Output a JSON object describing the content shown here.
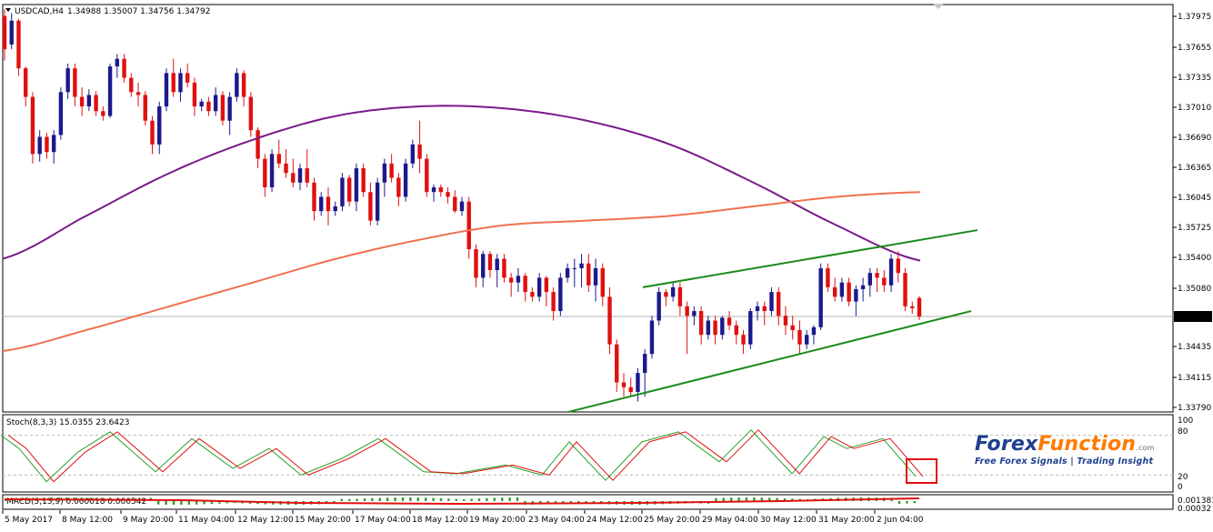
{
  "header": {
    "symbol": "USDCAD,H4",
    "ohlc": "1.34988 1.35007 1.34756 1.34792"
  },
  "price_axis": {
    "labels": [
      "1.37975",
      "1.37655",
      "1.37335",
      "1.37010",
      "1.36690",
      "1.36365",
      "1.36045",
      "1.35725",
      "1.35400",
      "1.35080",
      "1.34435",
      "1.34115",
      "1.33790"
    ],
    "current_price": "1.34792"
  },
  "time_axis": [
    "5 May 2017",
    "8 May 12:00",
    "9 May 20:00",
    "11 May 04:00",
    "12 May 12:00",
    "15 May 20:00",
    "17 May 04:00",
    "18 May 12:00",
    "19 May 20:00",
    "23 May 04:00",
    "24 May 12:00",
    "25 May 20:00",
    "29 May 04:00",
    "30 May 12:00",
    "31 May 20:00",
    "2 Jun 04:00"
  ],
  "stoch": {
    "label": "Stoch(8,3,3) 15.0355 23.6423",
    "levels": [
      "100",
      "80",
      "20",
      "0"
    ]
  },
  "macd": {
    "label": "MACD(5,13,9) 0.000018 0.000542",
    "levels": [
      "0.001381",
      "0.00032"
    ]
  },
  "brand": {
    "forex": "Forex",
    "function": "Function",
    "com": ".com",
    "tagline": "Free Forex Signals | Trading Insight"
  },
  "colors": {
    "bull": "#1a1a8c",
    "bear": "#e01010",
    "ma_fast": "#7a1a8a",
    "ma_slow": "#f07050",
    "channel": "#1a8a1a",
    "stoch_main": "#2aa02a",
    "stoch_signal": "#e01010",
    "highlight": "#e01010"
  },
  "chart_data": {
    "type": "candlestick",
    "symbol": "USDCAD",
    "timeframe": "H4",
    "ylim": [
      1.3379,
      1.3807
    ],
    "last": {
      "open": 1.34988,
      "high": 1.35007,
      "low": 1.34756,
      "close": 1.34792
    },
    "candles": [
      [
        1.3795,
        1.3802,
        1.3748,
        1.376
      ],
      [
        1.3765,
        1.3798,
        1.376,
        1.379
      ],
      [
        1.379,
        1.3792,
        1.3732,
        1.374
      ],
      [
        1.374,
        1.3742,
        1.37,
        1.371
      ],
      [
        1.371,
        1.3715,
        1.364,
        1.365
      ],
      [
        1.365,
        1.3675,
        1.3642,
        1.3668
      ],
      [
        1.3668,
        1.3672,
        1.3645,
        1.3652
      ],
      [
        1.3652,
        1.3675,
        1.364,
        1.367
      ],
      [
        1.367,
        1.372,
        1.3665,
        1.3715
      ],
      [
        1.3715,
        1.3745,
        1.3708,
        1.374
      ],
      [
        1.374,
        1.3745,
        1.37,
        1.371
      ],
      [
        1.371,
        1.372,
        1.369,
        1.37
      ],
      [
        1.37,
        1.3718,
        1.3695,
        1.3712
      ],
      [
        1.3712,
        1.3716,
        1.369,
        1.3695
      ],
      [
        1.3695,
        1.37,
        1.3685,
        1.369
      ],
      [
        1.369,
        1.3745,
        1.3688,
        1.3742
      ],
      [
        1.3742,
        1.3755,
        1.373,
        1.375
      ],
      [
        1.375,
        1.3755,
        1.3725,
        1.373
      ],
      [
        1.373,
        1.3735,
        1.371,
        1.3715
      ],
      [
        1.3715,
        1.3725,
        1.37,
        1.3712
      ],
      [
        1.3712,
        1.3716,
        1.368,
        1.3685
      ],
      [
        1.3685,
        1.369,
        1.365,
        1.366
      ],
      [
        1.366,
        1.3705,
        1.365,
        1.37
      ],
      [
        1.37,
        1.374,
        1.3695,
        1.3735
      ],
      [
        1.3735,
        1.375,
        1.371,
        1.3715
      ],
      [
        1.3715,
        1.374,
        1.3705,
        1.3735
      ],
      [
        1.3735,
        1.3745,
        1.372,
        1.3725
      ],
      [
        1.3725,
        1.373,
        1.369,
        1.37
      ],
      [
        1.37,
        1.3708,
        1.3695,
        1.3705
      ],
      [
        1.3705,
        1.371,
        1.369,
        1.3695
      ],
      [
        1.3695,
        1.372,
        1.369,
        1.3712
      ],
      [
        1.3712,
        1.3716,
        1.368,
        1.3685
      ],
      [
        1.3685,
        1.3715,
        1.367,
        1.371
      ],
      [
        1.371,
        1.374,
        1.3705,
        1.3735
      ],
      [
        1.3735,
        1.3738,
        1.37,
        1.371
      ],
      [
        1.371,
        1.3715,
        1.3668,
        1.3675
      ],
      [
        1.3675,
        1.3678,
        1.3635,
        1.3645
      ],
      [
        1.3645,
        1.365,
        1.3605,
        1.3615
      ],
      [
        1.3615,
        1.3655,
        1.361,
        1.365
      ],
      [
        1.365,
        1.3665,
        1.3635,
        1.364
      ],
      [
        1.364,
        1.3655,
        1.3625,
        1.363
      ],
      [
        1.363,
        1.3645,
        1.3615,
        1.362
      ],
      [
        1.362,
        1.364,
        1.3612,
        1.3635
      ],
      [
        1.3635,
        1.3655,
        1.3615,
        1.362
      ],
      [
        1.362,
        1.3625,
        1.358,
        1.359
      ],
      [
        1.359,
        1.361,
        1.3585,
        1.3605
      ],
      [
        1.3605,
        1.3615,
        1.3575,
        1.359
      ],
      [
        1.359,
        1.36,
        1.3585,
        1.3595
      ],
      [
        1.3595,
        1.363,
        1.359,
        1.3625
      ],
      [
        1.3625,
        1.3628,
        1.3595,
        1.36
      ],
      [
        1.36,
        1.364,
        1.359,
        1.3635
      ],
      [
        1.3635,
        1.364,
        1.3605,
        1.361
      ],
      [
        1.361,
        1.362,
        1.3575,
        1.358
      ],
      [
        1.358,
        1.3625,
        1.3575,
        1.362
      ],
      [
        1.362,
        1.3645,
        1.3605,
        1.364
      ],
      [
        1.364,
        1.365,
        1.362,
        1.3625
      ],
      [
        1.3625,
        1.363,
        1.3595,
        1.3605
      ],
      [
        1.3605,
        1.3645,
        1.36,
        1.364
      ],
      [
        1.364,
        1.3665,
        1.3635,
        1.366
      ],
      [
        1.366,
        1.3685,
        1.363,
        1.3645
      ],
      [
        1.3645,
        1.365,
        1.3605,
        1.361
      ],
      [
        1.361,
        1.3618,
        1.36,
        1.3615
      ],
      [
        1.3615,
        1.3618,
        1.3605,
        1.361
      ],
      [
        1.361,
        1.3615,
        1.3598,
        1.3605
      ],
      [
        1.3605,
        1.3612,
        1.3588,
        1.359
      ],
      [
        1.359,
        1.3605,
        1.3585,
        1.36
      ],
      [
        1.36,
        1.3605,
        1.354,
        1.355
      ],
      [
        1.355,
        1.3555,
        1.351,
        1.352
      ],
      [
        1.352,
        1.3548,
        1.351,
        1.3545
      ],
      [
        1.3545,
        1.3548,
        1.352,
        1.3528
      ],
      [
        1.3528,
        1.3545,
        1.351,
        1.354
      ],
      [
        1.354,
        1.3545,
        1.3515,
        1.352
      ],
      [
        1.352,
        1.3525,
        1.35,
        1.3515
      ],
      [
        1.3515,
        1.353,
        1.3505,
        1.3522
      ],
      [
        1.3522,
        1.3525,
        1.3495,
        1.3505
      ],
      [
        1.3505,
        1.351,
        1.3495,
        1.35
      ],
      [
        1.35,
        1.3525,
        1.3495,
        1.352
      ],
      [
        1.352,
        1.3522,
        1.349,
        1.3505
      ],
      [
        1.3505,
        1.351,
        1.3475,
        1.3485
      ],
      [
        1.3485,
        1.3525,
        1.348,
        1.352
      ],
      [
        1.352,
        1.3535,
        1.3515,
        1.353
      ],
      [
        1.353,
        1.354,
        1.351,
        1.353
      ],
      [
        1.353,
        1.3545,
        1.351,
        1.3535
      ],
      [
        1.3535,
        1.3545,
        1.3505,
        1.3512
      ],
      [
        1.3512,
        1.354,
        1.3495,
        1.353
      ],
      [
        1.353,
        1.3535,
        1.349,
        1.35
      ],
      [
        1.35,
        1.351,
        1.344,
        1.345
      ],
      [
        1.345,
        1.3455,
        1.34,
        1.341
      ],
      [
        1.341,
        1.342,
        1.3395,
        1.3405
      ],
      [
        1.3405,
        1.3415,
        1.3395,
        1.34
      ],
      [
        1.34,
        1.3425,
        1.339,
        1.342
      ],
      [
        1.342,
        1.3445,
        1.3395,
        1.344
      ],
      [
        1.344,
        1.348,
        1.3435,
        1.3475
      ],
      [
        1.3475,
        1.351,
        1.347,
        1.3505
      ],
      [
        1.3505,
        1.3508,
        1.349,
        1.35
      ],
      [
        1.35,
        1.3515,
        1.3495,
        1.351
      ],
      [
        1.351,
        1.3515,
        1.348,
        1.349
      ],
      [
        1.349,
        1.3495,
        1.344,
        1.348
      ],
      [
        1.348,
        1.349,
        1.347,
        1.3485
      ],
      [
        1.3485,
        1.349,
        1.345,
        1.346
      ],
      [
        1.346,
        1.348,
        1.3455,
        1.3475
      ],
      [
        1.3475,
        1.348,
        1.345,
        1.346
      ],
      [
        1.346,
        1.348,
        1.3455,
        1.3478
      ],
      [
        1.3478,
        1.3485,
        1.3465,
        1.347
      ],
      [
        1.347,
        1.3475,
        1.345,
        1.346
      ],
      [
        1.346,
        1.3465,
        1.344,
        1.345
      ],
      [
        1.345,
        1.3488,
        1.3445,
        1.3485
      ],
      [
        1.3485,
        1.3495,
        1.3475,
        1.349
      ],
      [
        1.349,
        1.3495,
        1.347,
        1.3485
      ],
      [
        1.3485,
        1.351,
        1.348,
        1.3505
      ],
      [
        1.3505,
        1.351,
        1.347,
        1.348
      ],
      [
        1.348,
        1.349,
        1.346,
        1.347
      ],
      [
        1.347,
        1.348,
        1.3455,
        1.3465
      ],
      [
        1.3465,
        1.3475,
        1.344,
        1.345
      ],
      [
        1.345,
        1.3465,
        1.3445,
        1.346
      ],
      [
        1.346,
        1.347,
        1.345,
        1.3468
      ],
      [
        1.3468,
        1.3535,
        1.3465,
        1.353
      ],
      [
        1.353,
        1.3535,
        1.3505,
        1.351
      ],
      [
        1.351,
        1.352,
        1.3495,
        1.35
      ],
      [
        1.35,
        1.352,
        1.3495,
        1.3515
      ],
      [
        1.3515,
        1.352,
        1.349,
        1.3495
      ],
      [
        1.3495,
        1.3512,
        1.348,
        1.3508
      ],
      [
        1.3508,
        1.352,
        1.3495,
        1.3512
      ],
      [
        1.3512,
        1.353,
        1.35,
        1.3525
      ],
      [
        1.3525,
        1.353,
        1.3505,
        1.352
      ],
      [
        1.352,
        1.3528,
        1.3505,
        1.3512
      ],
      [
        1.3512,
        1.3545,
        1.3505,
        1.354
      ],
      [
        1.354,
        1.3548,
        1.3515,
        1.3525
      ],
      [
        1.3525,
        1.353,
        1.3485,
        1.349
      ],
      [
        1.349,
        1.3495,
        1.3482,
        1.3488
      ],
      [
        1.34988,
        1.35007,
        1.34756,
        1.34792
      ]
    ],
    "series": [
      {
        "name": "",
        "type": "line",
        "values": [
          1.354,
          1.3585,
          1.363,
          1.3665,
          1.369,
          1.37,
          1.3698,
          1.3685,
          1.366,
          1.362,
          1.3575,
          1.3538
        ]
      },
      {
        "name": "",
        "type": "line",
        "values": [
          1.3443,
          1.3465,
          1.349,
          1.3515,
          1.354,
          1.356,
          1.3575,
          1.358,
          1.3585,
          1.3595,
          1.3605,
          1.361
        ]
      }
    ],
    "channel": {
      "upper": [
        [
          1.351,
          1.357
        ]
      ],
      "lower": [
        [
          1.3379,
          1.3485
        ]
      ]
    },
    "stochastic": {
      "params": [
        8,
        3,
        3
      ],
      "main": 15.0355,
      "signal": 23.6423,
      "ylim": [
        0,
        100
      ],
      "levels": [
        80,
        20
      ]
    },
    "macd": {
      "params": [
        5,
        13,
        9
      ],
      "value": 1.8e-05,
      "signal": 0.000542
    }
  }
}
